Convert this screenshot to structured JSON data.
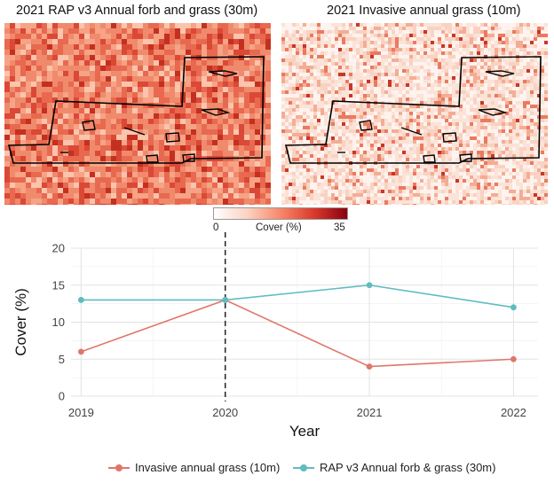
{
  "maps": {
    "left_title": "2021 RAP v3 Annual forb and grass (30m)",
    "right_title": "2021 Invasive annual grass (10m)"
  },
  "colorbar": {
    "min_label": "0",
    "max_label": "35",
    "label": "Cover (%)",
    "colors": [
      "#ffffff",
      "#fcd2c2",
      "#f7876a",
      "#d93a2c",
      "#8b0010"
    ]
  },
  "chart_data": {
    "type": "line",
    "title": "",
    "xlabel": "Year",
    "ylabel": "Cover (%)",
    "categories": [
      "2019",
      "2020",
      "2021",
      "2022"
    ],
    "x": [
      2019,
      2020,
      2021,
      2022
    ],
    "xlim": [
      2018.93,
      2022.17
    ],
    "ylim": [
      0,
      20
    ],
    "yticks": [
      0,
      5,
      10,
      15,
      20
    ],
    "ytick_labels": [
      "0",
      "5",
      "10",
      "15",
      "20"
    ],
    "vline": 2020,
    "grid": true,
    "legend_position": "bottom",
    "series": [
      {
        "name": "Invasive annual grass (10m)",
        "color": "#e0766a",
        "values": [
          6,
          13,
          4,
          5
        ]
      },
      {
        "name": "RAP v3 Annual forb & grass (30m)",
        "color": "#5fbcc0",
        "values": [
          13,
          13,
          15,
          12
        ]
      }
    ]
  }
}
